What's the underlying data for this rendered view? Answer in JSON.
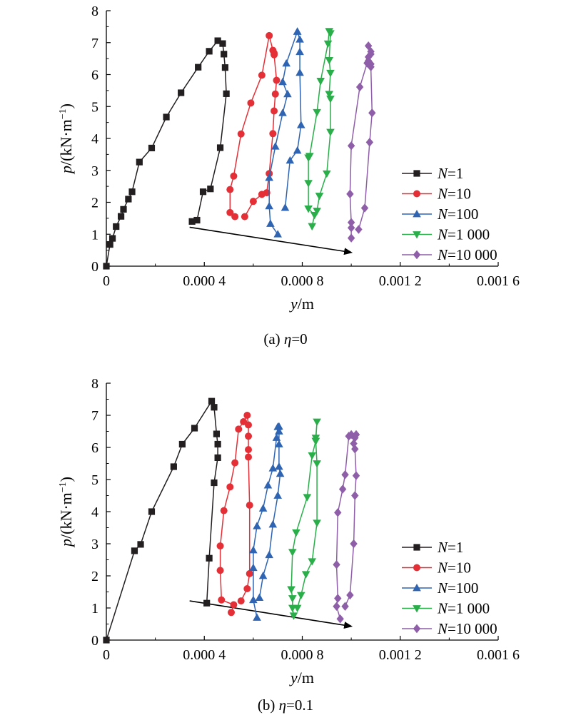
{
  "chart_data": [
    {
      "type": "line",
      "caption_prefix": "(a) ",
      "caption_symbol": "η",
      "caption_suffix": "=0",
      "xlabel": "y",
      "xlabel_unit": "/m",
      "ylabel_var": "p",
      "ylabel_unit": "/(kN·m",
      "ylabel_exp": "−1",
      "ylabel_close": ")",
      "xlim": [
        0,
        0.0016
      ],
      "ylim": [
        0,
        8
      ],
      "x_ticks": [
        0,
        0.0004,
        0.0008,
        0.0012,
        0.0016
      ],
      "x_tick_labels": [
        "0",
        "0.000 4",
        "0.000 8",
        "0.001 2",
        "0.001 6"
      ],
      "y_ticks": [
        0,
        1,
        2,
        3,
        4,
        5,
        6,
        7,
        8
      ],
      "y_tick_labels": [
        "0",
        "1",
        "2",
        "3",
        "4",
        "5",
        "6",
        "7",
        "8"
      ],
      "legend_position": "right",
      "arrow": {
        "from": [
          0.00034,
          1.22
        ],
        "to": [
          0.001,
          0.43
        ]
      },
      "series": [
        {
          "name": "=1",
          "color": "#231f20",
          "marker": "square",
          "points": [
            [
              0,
              0
            ],
            [
              1.5e-05,
              0.68
            ],
            [
              2.5e-05,
              0.87
            ],
            [
              4e-05,
              1.24
            ],
            [
              6e-05,
              1.56
            ],
            [
              7e-05,
              1.78
            ],
            [
              9e-05,
              2.1
            ],
            [
              0.000105,
              2.33
            ],
            [
              0.000135,
              3.26
            ],
            [
              0.000185,
              3.7
            ],
            [
              0.000245,
              4.67
            ],
            [
              0.000305,
              5.43
            ],
            [
              0.000375,
              6.23
            ],
            [
              0.00042,
              6.73
            ],
            [
              0.000455,
              7.06
            ],
            [
              0.000475,
              6.97
            ],
            [
              0.00048,
              6.64
            ],
            [
              0.000485,
              6.22
            ],
            [
              0.00049,
              5.4
            ],
            [
              0.000465,
              3.71
            ],
            [
              0.000425,
              2.42
            ],
            [
              0.000395,
              2.33
            ],
            [
              0.00037,
              1.44
            ],
            [
              0.00035,
              1.4
            ]
          ]
        },
        {
          "name": "=10",
          "color": "#e42f36",
          "marker": "circle",
          "points": [
            [
              0.000525,
              1.55
            ],
            [
              0.000505,
              1.68
            ],
            [
              0.000505,
              2.4
            ],
            [
              0.00052,
              2.82
            ],
            [
              0.00055,
              4.14
            ],
            [
              0.00059,
              5.11
            ],
            [
              0.000635,
              5.98
            ],
            [
              0.000665,
              7.22
            ],
            [
              0.00068,
              6.76
            ],
            [
              0.000685,
              6.67
            ],
            [
              0.000685,
              6.62
            ],
            [
              0.000695,
              5.82
            ],
            [
              0.00069,
              5.39
            ],
            [
              0.000685,
              4.86
            ],
            [
              0.00068,
              4.15
            ],
            [
              0.000665,
              2.9
            ],
            [
              0.000655,
              2.3
            ],
            [
              0.000635,
              2.25
            ],
            [
              0.0006,
              2.03
            ],
            [
              0.000565,
              1.55
            ]
          ]
        },
        {
          "name": "=100",
          "color": "#2e64b2",
          "marker": "triangle-up",
          "points": [
            [
              0.0007,
              1.0
            ],
            [
              0.00067,
              1.33
            ],
            [
              0.000665,
              1.88
            ],
            [
              0.000665,
              2.77
            ],
            [
              0.00069,
              3.75
            ],
            [
              0.00072,
              4.8
            ],
            [
              0.00074,
              5.39
            ],
            [
              0.00072,
              5.77
            ],
            [
              0.000735,
              6.35
            ],
            [
              0.00078,
              7.35
            ],
            [
              0.00078,
              7.34
            ],
            [
              0.00079,
              7.1
            ],
            [
              0.00079,
              6.71
            ],
            [
              0.00079,
              6.06
            ],
            [
              0.000795,
              4.42
            ],
            [
              0.00078,
              3.62
            ],
            [
              0.00075,
              3.31
            ],
            [
              0.00073,
              1.83
            ]
          ]
        },
        {
          "name": "=1 000",
          "color": "#2aae4a",
          "marker": "triangle-down",
          "points": [
            [
              0.00084,
              1.25
            ],
            [
              0.00085,
              1.6
            ],
            [
              0.000825,
              1.8
            ],
            [
              0.000825,
              2.6
            ],
            [
              0.000825,
              3.4
            ],
            [
              0.00083,
              3.45
            ],
            [
              0.00086,
              4.82
            ],
            [
              0.000875,
              5.8
            ],
            [
              0.000905,
              6.97
            ],
            [
              0.00091,
              7.36
            ],
            [
              0.000915,
              7.29
            ],
            [
              0.00091,
              6.45
            ],
            [
              0.000915,
              6.05
            ],
            [
              0.00091,
              5.39
            ],
            [
              0.000915,
              5.24
            ],
            [
              0.000915,
              4.2
            ],
            [
              0.0009,
              2.9
            ],
            [
              0.00087,
              2.2
            ],
            [
              0.00086,
              1.73
            ]
          ]
        },
        {
          "name": "=10 000",
          "color": "#8e5ea8",
          "marker": "diamond",
          "points": [
            [
              0.001,
              0.88
            ],
            [
              0.001,
              1.2
            ],
            [
              0.001,
              1.37
            ],
            [
              0.000995,
              2.26
            ],
            [
              0.001,
              3.77
            ],
            [
              0.001035,
              5.61
            ],
            [
              0.001065,
              6.36
            ],
            [
              0.00107,
              6.43
            ],
            [
              0.00108,
              6.64
            ],
            [
              0.00107,
              6.9
            ],
            [
              0.00108,
              6.72
            ],
            [
              0.00107,
              6.55
            ],
            [
              0.00108,
              6.33
            ],
            [
              0.00108,
              6.24
            ],
            [
              0.001085,
              4.8
            ],
            [
              0.001075,
              3.88
            ],
            [
              0.001055,
              1.82
            ],
            [
              0.00103,
              1.15
            ]
          ]
        }
      ]
    },
    {
      "type": "line",
      "caption_prefix": "(b) ",
      "caption_symbol": "η",
      "caption_suffix": "=0.1",
      "xlabel": "y",
      "xlabel_unit": "/m",
      "ylabel_var": "p",
      "ylabel_unit": "/(kN·m",
      "ylabel_exp": "−1",
      "ylabel_close": ")",
      "xlim": [
        0,
        0.0016
      ],
      "ylim": [
        0,
        8
      ],
      "x_ticks": [
        0,
        0.0004,
        0.0008,
        0.0012,
        0.0016
      ],
      "x_tick_labels": [
        "0",
        "0.000 4",
        "0.000 8",
        "0.001 2",
        "0.001 6"
      ],
      "y_ticks": [
        0,
        1,
        2,
        3,
        4,
        5,
        6,
        7,
        8
      ],
      "y_tick_labels": [
        "0",
        "1",
        "2",
        "3",
        "4",
        "5",
        "6",
        "7",
        "8"
      ],
      "legend_position": "right",
      "arrow": {
        "from": [
          0.00034,
          1.22
        ],
        "to": [
          0.001,
          0.43
        ]
      },
      "series": [
        {
          "name": "=1",
          "color": "#231f20",
          "marker": "square",
          "points": [
            [
              0,
              0
            ],
            [
              0.000115,
              2.78
            ],
            [
              0.00014,
              2.98
            ],
            [
              0.000185,
              4.0
            ],
            [
              0.000275,
              5.4
            ],
            [
              0.00031,
              6.1
            ],
            [
              0.00036,
              6.6
            ],
            [
              0.00043,
              7.44
            ],
            [
              0.00044,
              7.25
            ],
            [
              0.00045,
              6.42
            ],
            [
              0.000455,
              6.1
            ],
            [
              0.000455,
              5.68
            ],
            [
              0.00044,
              4.9
            ],
            [
              0.00042,
              2.55
            ],
            [
              0.00041,
              1.15
            ]
          ]
        },
        {
          "name": "=10",
          "color": "#e42f36",
          "marker": "circle",
          "points": [
            [
              0.00051,
              0.86
            ],
            [
              0.00052,
              1.1
            ],
            [
              0.00047,
              1.25
            ],
            [
              0.000465,
              2.17
            ],
            [
              0.000465,
              2.93
            ],
            [
              0.00048,
              4.03
            ],
            [
              0.000505,
              4.77
            ],
            [
              0.000525,
              5.52
            ],
            [
              0.00054,
              6.57
            ],
            [
              0.00056,
              6.8
            ],
            [
              0.000575,
              7.0
            ],
            [
              0.00058,
              6.7
            ],
            [
              0.00058,
              6.35
            ],
            [
              0.00058,
              5.93
            ],
            [
              0.00058,
              5.7
            ],
            [
              0.000585,
              4.2
            ],
            [
              0.000585,
              2.07
            ],
            [
              0.000575,
              1.6
            ],
            [
              0.00055,
              1.22
            ]
          ]
        },
        {
          "name": "=100",
          "color": "#2e64b2",
          "marker": "triangle-up",
          "points": [
            [
              0.000615,
              0.7
            ],
            [
              0.0006,
              1.25
            ],
            [
              0.0006,
              2.25
            ],
            [
              0.0006,
              2.8
            ],
            [
              0.000615,
              3.55
            ],
            [
              0.00064,
              4.1
            ],
            [
              0.00066,
              4.82
            ],
            [
              0.00068,
              5.35
            ],
            [
              0.000695,
              6.3
            ],
            [
              0.0007,
              6.64
            ],
            [
              0.000705,
              6.65
            ],
            [
              0.000705,
              6.5
            ],
            [
              0.000705,
              6.1
            ],
            [
              0.000705,
              5.4
            ],
            [
              0.00071,
              5.18
            ],
            [
              0.0007,
              4.5
            ],
            [
              0.00068,
              3.6
            ],
            [
              0.000665,
              2.65
            ],
            [
              0.00064,
              2.0
            ],
            [
              0.000625,
              1.32
            ]
          ]
        },
        {
          "name": "=1 000",
          "color": "#2aae4a",
          "marker": "triangle-down",
          "points": [
            [
              0.000765,
              0.76
            ],
            [
              0.00076,
              1.0
            ],
            [
              0.00076,
              1.3
            ],
            [
              0.000755,
              1.58
            ],
            [
              0.00076,
              2.74
            ],
            [
              0.000775,
              3.35
            ],
            [
              0.00082,
              4.45
            ],
            [
              0.00084,
              5.75
            ],
            [
              0.000855,
              6.2
            ],
            [
              0.00086,
              6.8
            ],
            [
              0.000855,
              6.3
            ],
            [
              0.000855,
              6.2
            ],
            [
              0.00086,
              5.5
            ],
            [
              0.00086,
              3.65
            ],
            [
              0.00084,
              2.45
            ],
            [
              0.000815,
              2.05
            ],
            [
              0.000795,
              1.4
            ],
            [
              0.00078,
              1.0
            ]
          ]
        },
        {
          "name": "=10 000",
          "color": "#8e5ea8",
          "marker": "diamond",
          "points": [
            [
              0.000955,
              0.66
            ],
            [
              0.00094,
              1.05
            ],
            [
              0.000945,
              1.3
            ],
            [
              0.00094,
              2.35
            ],
            [
              0.000945,
              3.97
            ],
            [
              0.000965,
              4.7
            ],
            [
              0.000975,
              5.15
            ],
            [
              0.00099,
              6.35
            ],
            [
              0.001,
              6.4
            ],
            [
              0.001015,
              6.3
            ],
            [
              0.00102,
              6.4
            ],
            [
              0.00101,
              6.12
            ],
            [
              0.001015,
              5.95
            ],
            [
              0.00102,
              5.12
            ],
            [
              0.001015,
              4.5
            ],
            [
              0.00101,
              3.0
            ],
            [
              0.000995,
              1.4
            ],
            [
              0.000975,
              1.05
            ]
          ]
        }
      ]
    }
  ]
}
